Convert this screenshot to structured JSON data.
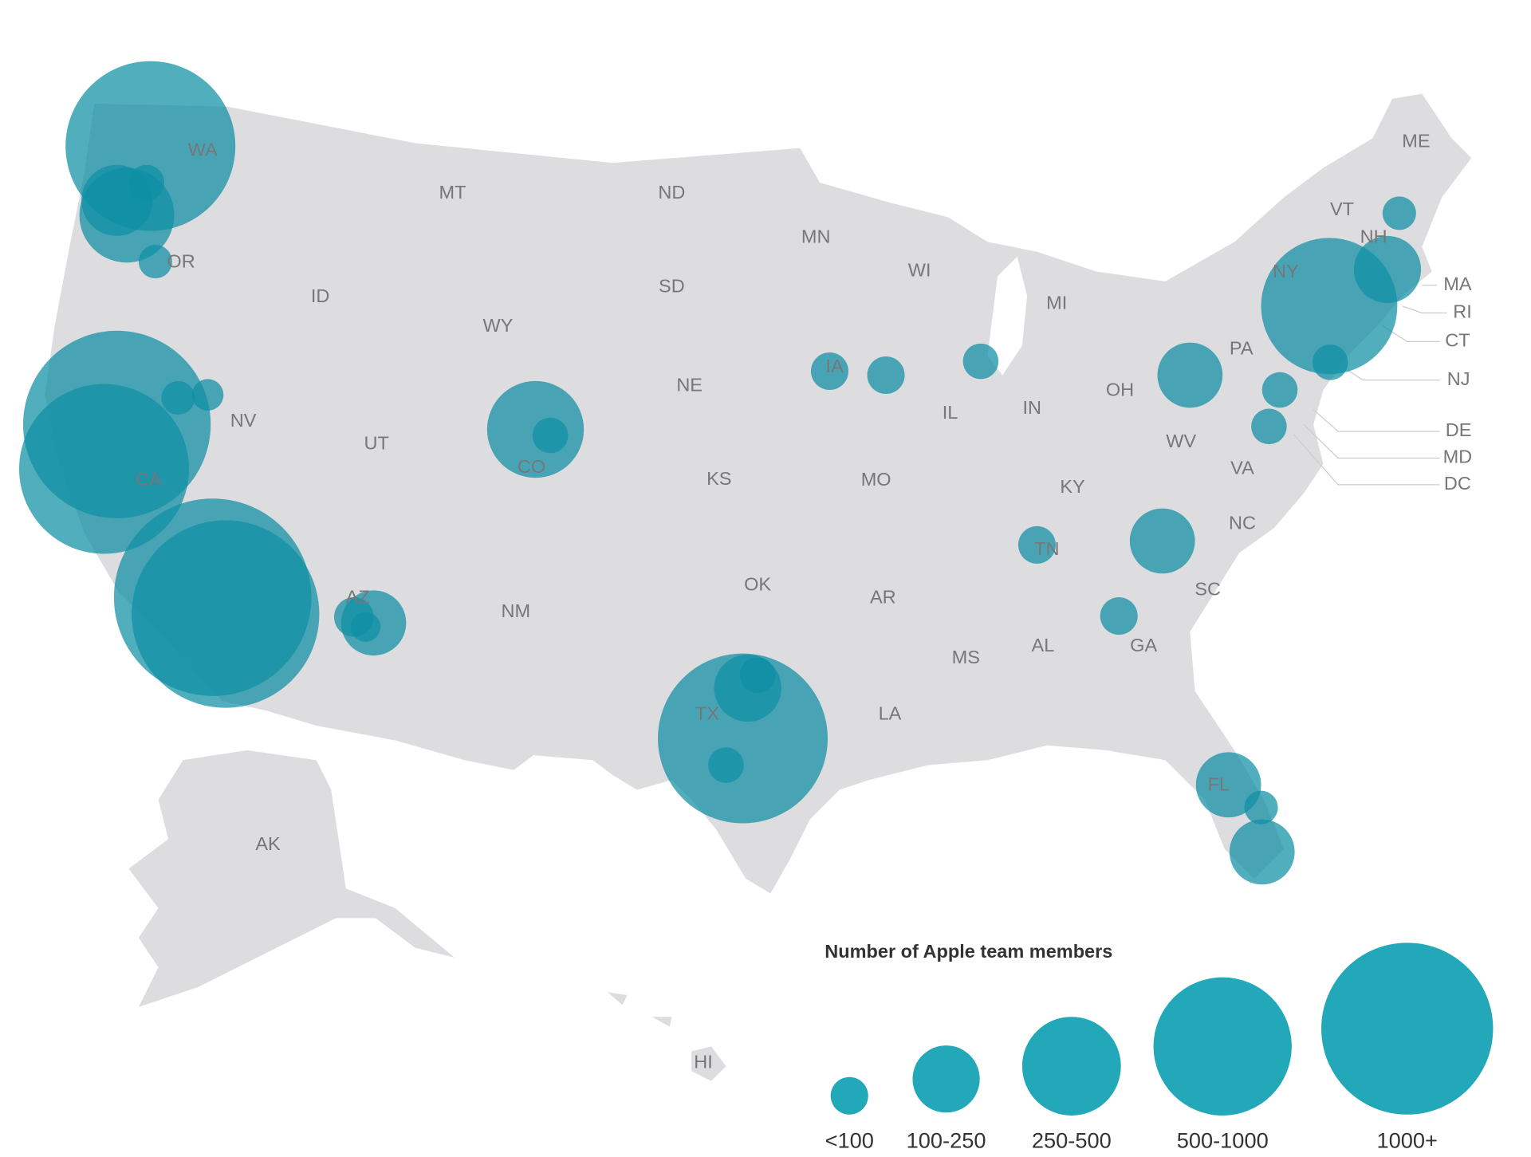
{
  "map": {
    "state_labels": [
      "WA",
      "MT",
      "ND",
      "MN",
      "WI",
      "MI",
      "ME",
      "VT",
      "NH",
      "NY",
      "MA",
      "RI",
      "CT",
      "NJ",
      "DE",
      "MD",
      "DC",
      "PA",
      "OR",
      "ID",
      "SD",
      "WY",
      "NE",
      "IA",
      "IL",
      "IN",
      "OH",
      "NV",
      "UT",
      "CO",
      "CA",
      "KS",
      "MO",
      "KY",
      "WV",
      "VA",
      "NC",
      "TN",
      "SC",
      "OK",
      "AR",
      "NM",
      "AZ",
      "MS",
      "AL",
      "GA",
      "LA",
      "TX",
      "FL",
      "AK",
      "HI"
    ]
  },
  "legend": {
    "title": "Number of Apple team members",
    "items": [
      "<100",
      "100-250",
      "250-500",
      "500-1000",
      "1000+"
    ]
  }
}
